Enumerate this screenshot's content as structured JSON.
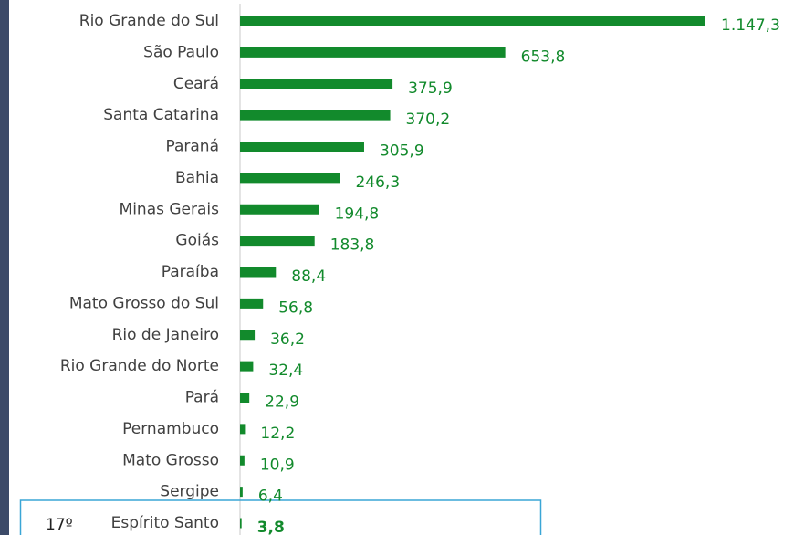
{
  "chart_data": {
    "type": "bar",
    "orientation": "horizontal",
    "categories": [
      "Rio Grande do Sul",
      "São Paulo",
      "Ceará",
      "Santa Catarina",
      "Paraná",
      "Bahia",
      "Minas Gerais",
      "Goiás",
      "Paraíba",
      "Mato Grosso do Sul",
      "Rio de Janeiro",
      "Rio Grande do Norte",
      "Pará",
      "Pernambuco",
      "Mato Grosso",
      "Sergipe",
      "Espírito Santo"
    ],
    "values": [
      1147.3,
      653.8,
      375.9,
      370.2,
      305.9,
      246.3,
      194.8,
      183.8,
      88.4,
      56.8,
      36.2,
      32.4,
      22.9,
      12.2,
      10.9,
      6.4,
      3.8
    ],
    "value_labels": [
      "1.147,3",
      "653,8",
      "375,9",
      "370,2",
      "305,9",
      "246,3",
      "194,8",
      "183,8",
      "88,4",
      "56,8",
      "36,2",
      "32,4",
      "22,9",
      "12,2",
      "10,9",
      "6,4",
      "3,8"
    ],
    "color": "#128a2c",
    "highlight": {
      "rank": "17º",
      "index": 16
    }
  }
}
